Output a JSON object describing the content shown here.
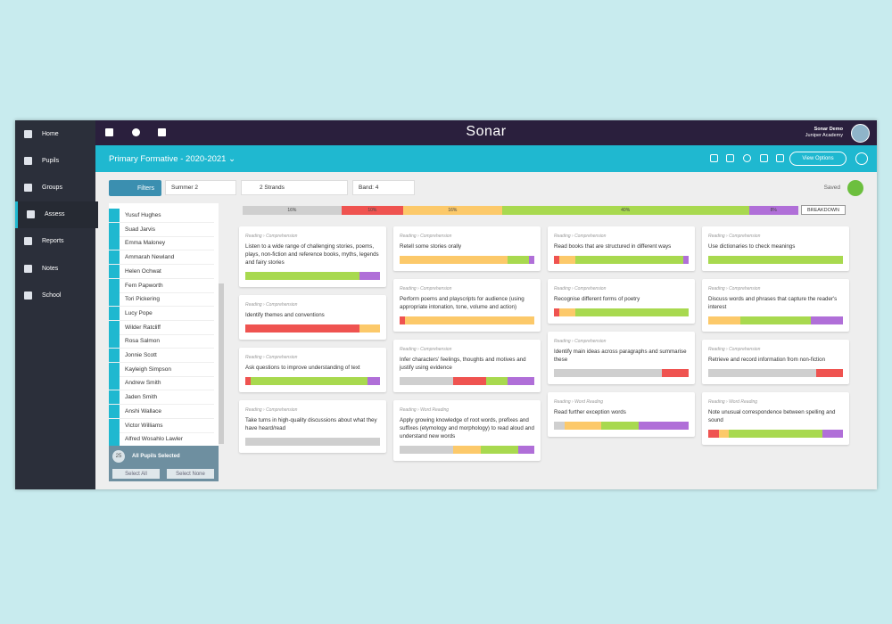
{
  "header": {
    "brand": "Sonar",
    "user_name": "Sonar Demo",
    "school": "Juniper Academy"
  },
  "nav": [
    "Home",
    "Pupils",
    "Groups",
    "Assess",
    "Reports",
    "Notes",
    "School"
  ],
  "assessment": {
    "title": "Primary Formative - 2020-2021",
    "view_options": "View Options"
  },
  "toolbar": {
    "filters": "Filters",
    "term": "Summer 2",
    "strands": "2 Strands",
    "band": "Band: 4",
    "status": "Saved"
  },
  "pupils": {
    "names": [
      "Yusuf Hughes",
      "Suad Jarvis",
      "Emma Maloney",
      "Ammarah Newland",
      "Helen Ochwat",
      "Fern Papworth",
      "Tori Pickering",
      "Lucy Pope",
      "Wilder Ratcliff",
      "Rosa Salmon",
      "Jonnie Scott",
      "Kayleigh Simpson",
      "Andrew Smith",
      "Jaden Smith",
      "Anshi Wallace",
      "Victor Williams",
      "Alfred Wosahlo Lawler"
    ],
    "count": 25,
    "selected_label": "All Pupils Selected",
    "select_all": "Select All",
    "select_none": "Select None"
  },
  "summary": {
    "segments": [
      {
        "color": "#cfcfcf",
        "value": 16,
        "label": "16%"
      },
      {
        "color": "#ef5350",
        "value": 10,
        "label": "10%"
      },
      {
        "color": "#fcc96a",
        "value": 16,
        "label": "16%"
      },
      {
        "color": "#a8d94f",
        "value": 40,
        "label": "40%"
      },
      {
        "color": "#b06fd8",
        "value": 8,
        "label": "8%"
      }
    ],
    "button": "BREAKDOWN"
  },
  "colors": {
    "gray": "#cfcfcf",
    "red": "#ef5350",
    "yellow": "#fcc96a",
    "green": "#a8d94f",
    "purple": "#b06fd8"
  },
  "columns": [
    [
      {
        "crumb": "Reading › Comprehension",
        "title": "Listen to a wide range of challenging stories, poems, plays, non-fiction and reference books, myths, legends and fairy stories",
        "segments": [
          {
            "color": "green",
            "value": 85
          },
          {
            "color": "purple",
            "value": 15
          }
        ]
      },
      {
        "crumb": "Reading › Comprehension",
        "title": "Identify themes and conventions",
        "segments": [
          {
            "color": "red",
            "value": 85
          },
          {
            "color": "yellow",
            "value": 15
          }
        ]
      },
      {
        "crumb": "Reading › Comprehension",
        "title": "Ask questions to improve understanding of text",
        "segments": [
          {
            "color": "red",
            "value": 4
          },
          {
            "color": "green",
            "value": 87
          },
          {
            "color": "purple",
            "value": 9
          }
        ]
      },
      {
        "crumb": "Reading › Comprehension",
        "title": "Take turns in high-quality discussions about what they have heard/read",
        "segments": [
          {
            "color": "gray",
            "value": 100
          }
        ]
      }
    ],
    [
      {
        "crumb": "Reading › Comprehension",
        "title": "Retell some stories orally",
        "segments": [
          {
            "color": "yellow",
            "value": 80
          },
          {
            "color": "green",
            "value": 16
          },
          {
            "color": "purple",
            "value": 4
          }
        ]
      },
      {
        "crumb": "Reading › Comprehension",
        "title": "Perform poems and playscripts for audience (using appropriate intonation, tone, volume and action)",
        "segments": [
          {
            "color": "red",
            "value": 4
          },
          {
            "color": "yellow",
            "value": 96
          }
        ]
      },
      {
        "crumb": "Reading › Comprehension",
        "title": "Infer characters' feelings, thoughts and motives and justify using evidence",
        "segments": [
          {
            "color": "gray",
            "value": 40
          },
          {
            "color": "red",
            "value": 24
          },
          {
            "color": "green",
            "value": 16
          },
          {
            "color": "purple",
            "value": 20
          }
        ]
      },
      {
        "crumb": "Reading › Word Reading",
        "title": "Apply growing knowledge of root words, prefixes and suffixes (etymology and morphology) to read aloud and understand new words",
        "segments": [
          {
            "color": "gray",
            "value": 40
          },
          {
            "color": "yellow",
            "value": 20
          },
          {
            "color": "green",
            "value": 28
          },
          {
            "color": "purple",
            "value": 12
          }
        ]
      }
    ],
    [
      {
        "crumb": "Reading › Comprehension",
        "title": "Read books that are structured in different ways",
        "segments": [
          {
            "color": "red",
            "value": 4
          },
          {
            "color": "yellow",
            "value": 12
          },
          {
            "color": "green",
            "value": 80
          },
          {
            "color": "purple",
            "value": 4
          }
        ]
      },
      {
        "crumb": "Reading › Comprehension",
        "title": "Recognise different forms of poetry",
        "segments": [
          {
            "color": "red",
            "value": 4
          },
          {
            "color": "yellow",
            "value": 12
          },
          {
            "color": "green",
            "value": 84
          }
        ]
      },
      {
        "crumb": "Reading › Comprehension",
        "title": "Identify main ideas across paragraphs and summarise these",
        "segments": [
          {
            "color": "gray",
            "value": 80
          },
          {
            "color": "red",
            "value": 20
          }
        ]
      },
      {
        "crumb": "Reading › Word Reading",
        "title": "Read further exception words",
        "segments": [
          {
            "color": "gray",
            "value": 8
          },
          {
            "color": "yellow",
            "value": 27
          },
          {
            "color": "green",
            "value": 28
          },
          {
            "color": "purple",
            "value": 37
          }
        ]
      }
    ],
    [
      {
        "crumb": "Reading › Comprehension",
        "title": "Use dictionaries to check meanings",
        "segments": [
          {
            "color": "green",
            "value": 100
          }
        ]
      },
      {
        "crumb": "Reading › Comprehension",
        "title": "Discuss words and phrases that capture the reader's interest",
        "segments": [
          {
            "color": "yellow",
            "value": 24
          },
          {
            "color": "green",
            "value": 52
          },
          {
            "color": "purple",
            "value": 24
          }
        ]
      },
      {
        "crumb": "Reading › Comprehension",
        "title": "Retrieve and record information from non-fiction",
        "segments": [
          {
            "color": "gray",
            "value": 80
          },
          {
            "color": "red",
            "value": 20
          }
        ]
      },
      {
        "crumb": "Reading › Word Reading",
        "title": "Note unusual correspondence between spelling and sound",
        "segments": [
          {
            "color": "red",
            "value": 8
          },
          {
            "color": "yellow",
            "value": 7
          },
          {
            "color": "green",
            "value": 70
          },
          {
            "color": "purple",
            "value": 15
          }
        ]
      }
    ]
  ]
}
